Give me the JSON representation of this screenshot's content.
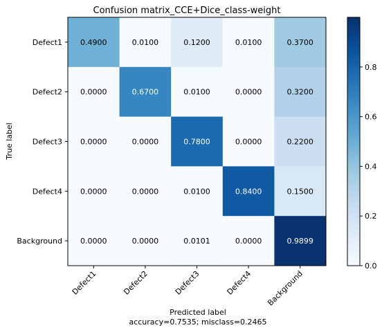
{
  "chart_data": {
    "type": "heatmap",
    "title": "Confusion matrix_CCE+Dice_class-weight",
    "xlabel": "Predicted label",
    "xlabel_note": "accuracy=0.7535; misclass=0.2465",
    "ylabel": "True label",
    "row_labels": [
      "Defect1",
      "Defect2",
      "Defect3",
      "Defect4",
      "Background"
    ],
    "col_labels": [
      "Defect1",
      "Defect2",
      "Defect3",
      "Defect4",
      "Background"
    ],
    "values": [
      [
        0.49,
        0.01,
        0.12,
        0.01,
        0.37
      ],
      [
        0.0,
        0.67,
        0.01,
        0.0,
        0.32
      ],
      [
        0.0,
        0.0,
        0.78,
        0.0,
        0.22
      ],
      [
        0.0,
        0.0,
        0.01,
        0.84,
        0.15
      ],
      [
        0.0,
        0.0,
        0.0101,
        0.0,
        0.9899
      ]
    ],
    "value_labels": [
      [
        "0.4900",
        "0.0100",
        "0.1200",
        "0.0100",
        "0.3700"
      ],
      [
        "0.0000",
        "0.6700",
        "0.0100",
        "0.0000",
        "0.3200"
      ],
      [
        "0.0000",
        "0.0000",
        "0.7800",
        "0.0000",
        "0.2200"
      ],
      [
        "0.0000",
        "0.0000",
        "0.0100",
        "0.8400",
        "0.1500"
      ],
      [
        "0.0000",
        "0.0000",
        "0.0101",
        "0.0000",
        "0.9899"
      ]
    ],
    "colormap": "Blues",
    "colorbar": {
      "range": [
        0,
        1
      ],
      "ticks": [
        0.0,
        0.2,
        0.4,
        0.6,
        0.8
      ],
      "tick_labels": [
        "0.0",
        "0.2",
        "0.4",
        "0.6",
        "0.8"
      ]
    },
    "grid": false
  }
}
